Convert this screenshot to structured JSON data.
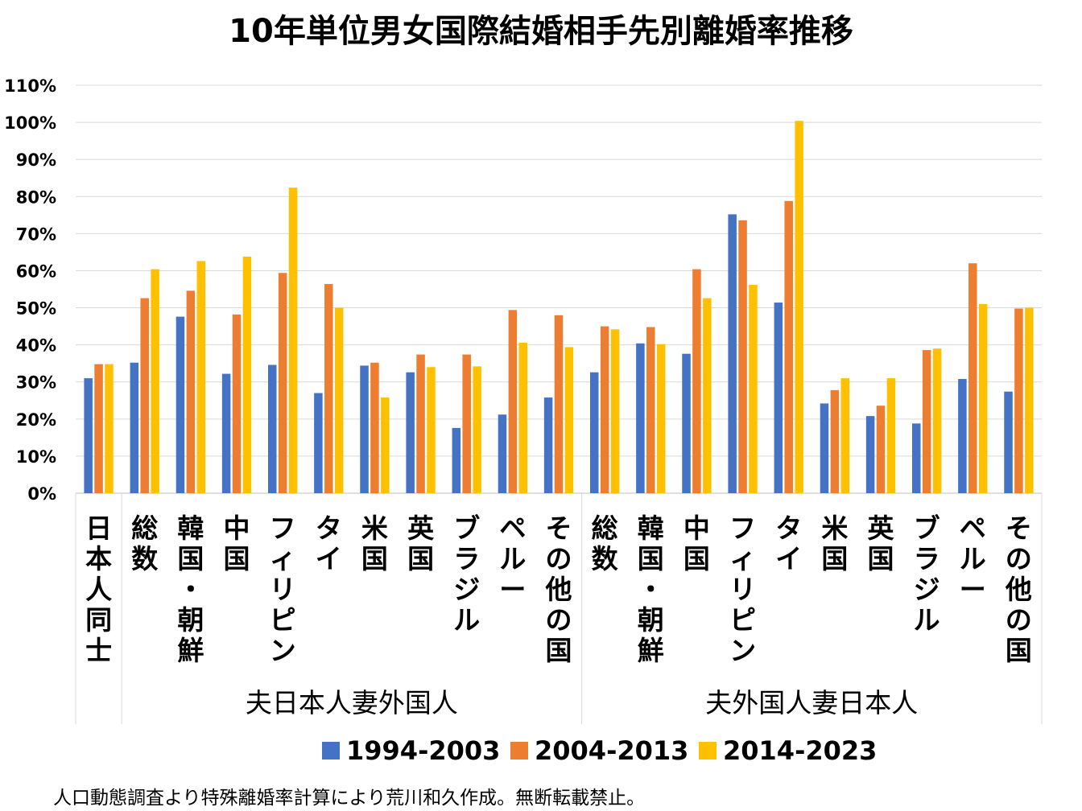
{
  "chart_data": {
    "type": "bar",
    "title": "10年単位男女国際結婚相手先別離婚率推移",
    "xlabel": "",
    "ylabel": "",
    "ylim": [
      0,
      110
    ],
    "yticks": [
      "0%",
      "10%",
      "20%",
      "30%",
      "40%",
      "50%",
      "60%",
      "70%",
      "80%",
      "90%",
      "100%",
      "110%"
    ],
    "grid": true,
    "legend_position": "bottom",
    "categories": [
      "日本人同士",
      "総数",
      "韓国・朝鮮",
      "中国",
      "フィリピン",
      "タイ",
      "米国",
      "英国",
      "ブラジル",
      "ペルー",
      "その他の国",
      "総数",
      "韓国・朝鮮",
      "中国",
      "フィリピン",
      "タイ",
      "米国",
      "英国",
      "ブラジル",
      "ペルー",
      "その他の国"
    ],
    "groups": [
      {
        "label": "夫日本人妻外国人",
        "start": 1,
        "end": 10
      },
      {
        "label": "夫外国人妻日本人",
        "start": 11,
        "end": 20
      }
    ],
    "series": [
      {
        "name": "1994-2003",
        "color": "#4472C4",
        "values": [
          31,
          35.2,
          47.6,
          32.2,
          34.6,
          27,
          34.4,
          32.6,
          17.6,
          21.2,
          25.8,
          32.6,
          40.4,
          37.6,
          75.2,
          51.4,
          24.2,
          20.8,
          18.8,
          30.8,
          27.4
        ]
      },
      {
        "name": "2004-2013",
        "color": "#ED7D31",
        "values": [
          34.8,
          52.6,
          54.6,
          48.2,
          59.4,
          56.4,
          35.2,
          37.4,
          37.4,
          49.4,
          48,
          45,
          44.8,
          60.4,
          73.6,
          78.8,
          27.8,
          23.6,
          38.6,
          62,
          49.8
        ]
      },
      {
        "name": "2014-2023",
        "color": "#FFC000",
        "values": [
          34.8,
          60.4,
          62.6,
          63.8,
          82.4,
          50,
          25.8,
          34,
          34.2,
          40.6,
          39.4,
          44.2,
          40.2,
          52.6,
          56.2,
          100.4,
          31,
          31,
          39,
          51,
          50
        ]
      }
    ]
  },
  "footer": "人口動態調査より特殊離婚率計算により荒川和久作成。無断転載禁止。"
}
